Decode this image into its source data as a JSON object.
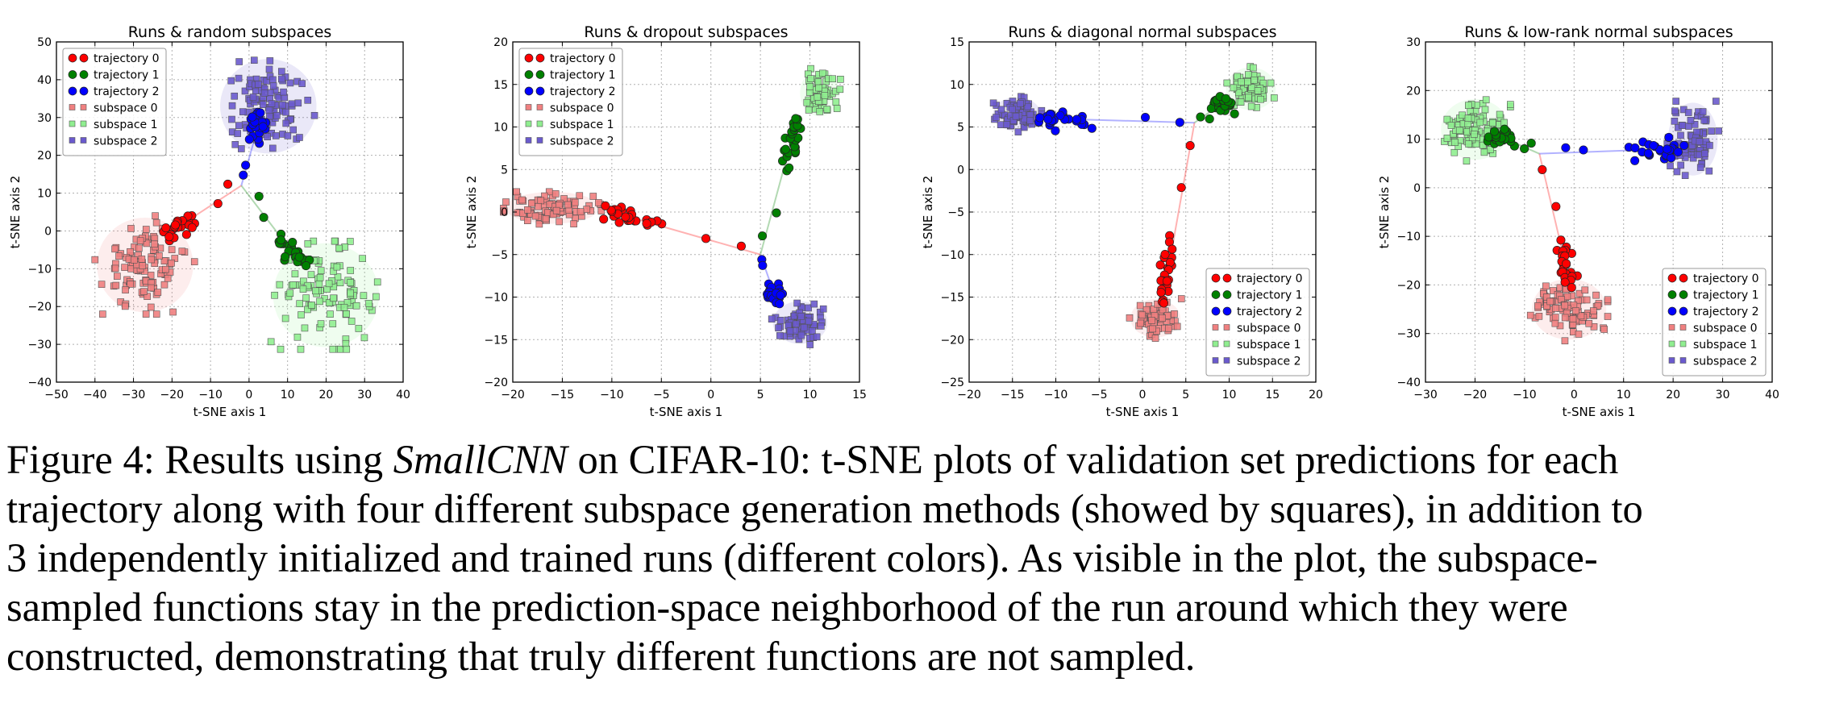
{
  "figure": {
    "caption": {
      "lines": [
        {
          "pre": "Figure 4: Results using ",
          "em": "SmallCNN",
          "post": " on CIFAR-10: t-SNE plots of validation set predictions for each"
        },
        {
          "pre": "trajectory along with four different subspace generation methods (showed by squares), in addition to"
        },
        {
          "pre": "3 independently initialized and trained runs (different colors). As visible in the plot, the subspace-"
        },
        {
          "pre": "sampled functions stay in the prediction-space neighborhood of the run around which they were"
        },
        {
          "pre": "constructed, demonstrating that truly different functions are not sampled."
        }
      ]
    }
  },
  "colors": {
    "trajectory": [
      "#ff0000",
      "#008000",
      "#0000ff"
    ],
    "subspace": [
      "#f08080",
      "#90ee90",
      "#6a5acd"
    ]
  },
  "chart_data": [
    {
      "type": "scatter",
      "title": "Runs & random subspaces",
      "xlabel": "t-SNE axis 1",
      "ylabel": "t-SNE axis 2",
      "xlim": [
        -50,
        40
      ],
      "ylim": [
        -40,
        50
      ],
      "xticks": [
        -50,
        -40,
        -30,
        -20,
        -10,
        0,
        10,
        20,
        30,
        40
      ],
      "yticks": [
        -40,
        -30,
        -20,
        -10,
        0,
        10,
        20,
        30,
        40,
        50
      ],
      "grid": true,
      "legend": "top-left",
      "legend_entries": [
        "trajectory 0",
        "trajectory 1",
        "trajectory 2",
        "subspace 0",
        "subspace 1",
        "subspace 2"
      ],
      "origin": [
        -2,
        12
      ],
      "runs": [
        {
          "trajectory_end": [
            -20,
            0
          ],
          "subspace_center": [
            -27,
            -9
          ],
          "subspace_spread": [
            10,
            10
          ],
          "subspace_count": 110
        },
        {
          "trajectory_end": [
            13,
            -8
          ],
          "subspace_center": [
            20,
            -17
          ],
          "subspace_spread": [
            11,
            11
          ],
          "subspace_count": 110
        },
        {
          "trajectory_end": [
            3,
            30
          ],
          "subspace_center": [
            5,
            33
          ],
          "subspace_spread": [
            10,
            10
          ],
          "subspace_count": 110
        }
      ]
    },
    {
      "type": "scatter",
      "title": "Runs & dropout subspaces",
      "xlabel": "t-SNE axis 1",
      "ylabel": "t-SNE axis 2",
      "xlim": [
        -20,
        15
      ],
      "ylim": [
        -20,
        20
      ],
      "xticks": [
        -20,
        -15,
        -10,
        -5,
        0,
        5,
        10,
        15
      ],
      "yticks": [
        -20,
        -15,
        -10,
        -5,
        0,
        5,
        10,
        15,
        20
      ],
      "grid": true,
      "legend": "top-left",
      "legend_entries": [
        "trajectory 0",
        "trajectory 1",
        "trajectory 2",
        "subspace 0",
        "subspace 1",
        "subspace 2"
      ],
      "origin": [
        5,
        -5
      ],
      "runs": [
        {
          "trajectory_end": [
            -10,
            0
          ],
          "subspace_center": [
            -16,
            0.5
          ],
          "subspace_spread": [
            3.8,
            1.5
          ],
          "subspace_count": 90
        },
        {
          "trajectory_end": [
            8.5,
            10
          ],
          "subspace_center": [
            11,
            14
          ],
          "subspace_spread": [
            1.6,
            2.2
          ],
          "subspace_count": 60
        },
        {
          "trajectory_end": [
            6.5,
            -10
          ],
          "subspace_center": [
            9,
            -13
          ],
          "subspace_spread": [
            2.2,
            2
          ],
          "subspace_count": 70
        }
      ]
    },
    {
      "type": "scatter",
      "title": "Runs & diagonal normal subspaces",
      "xlabel": "t-SNE axis 1",
      "ylabel": "t-SNE axis 2",
      "xlim": [
        -20,
        20
      ],
      "ylim": [
        -25,
        15
      ],
      "xticks": [
        -20,
        -15,
        -10,
        -5,
        0,
        5,
        10,
        15,
        20
      ],
      "yticks": [
        -25,
        -20,
        -15,
        -10,
        -5,
        0,
        5,
        10,
        15
      ],
      "grid": true,
      "legend": "bottom-right",
      "legend_entries": [
        "trajectory 0",
        "trajectory 1",
        "trajectory 2",
        "subspace 0",
        "subspace 1",
        "subspace 2"
      ],
      "origin": [
        6,
        5.5
      ],
      "runs": [
        {
          "trajectory_end": [
            2.5,
            -14.5
          ],
          "subspace_center": [
            1.5,
            -17.5
          ],
          "subspace_spread": [
            2.3,
            1.8
          ],
          "subspace_count": 70
        },
        {
          "trajectory_end": [
            9.5,
            8
          ],
          "subspace_center": [
            12.5,
            9.5
          ],
          "subspace_spread": [
            2.3,
            2
          ],
          "subspace_count": 70
        },
        {
          "trajectory_end": [
            -11,
            6
          ],
          "subspace_center": [
            -14.5,
            6.5
          ],
          "subspace_spread": [
            2.2,
            1.6
          ],
          "subspace_count": 80
        }
      ]
    },
    {
      "type": "scatter",
      "title": "Runs & low-rank normal subspaces",
      "xlabel": "t-SNE axis 1",
      "ylabel": "t-SNE axis 2",
      "xlim": [
        -30,
        40
      ],
      "ylim": [
        -40,
        30
      ],
      "xticks": [
        -30,
        -20,
        -10,
        0,
        10,
        20,
        30,
        40
      ],
      "yticks": [
        -40,
        -30,
        -20,
        -10,
        0,
        10,
        20,
        30
      ],
      "grid": true,
      "legend": "bottom-right",
      "legend_entries": [
        "trajectory 0",
        "trajectory 1",
        "trajectory 2",
        "subspace 0",
        "subspace 1",
        "subspace 2"
      ],
      "origin": [
        -7,
        7
      ],
      "runs": [
        {
          "trajectory_end": [
            -1,
            -19
          ],
          "subspace_center": [
            -1,
            -25
          ],
          "subspace_spread": [
            6,
            5
          ],
          "subspace_count": 100
        },
        {
          "trajectory_end": [
            -16,
            11
          ],
          "subspace_center": [
            -20,
            12
          ],
          "subspace_spread": [
            5.5,
            5
          ],
          "subspace_count": 100
        },
        {
          "trajectory_end": [
            20,
            8
          ],
          "subspace_center": [
            24,
            10
          ],
          "subspace_spread": [
            4,
            6
          ],
          "subspace_count": 80
        }
      ]
    }
  ]
}
